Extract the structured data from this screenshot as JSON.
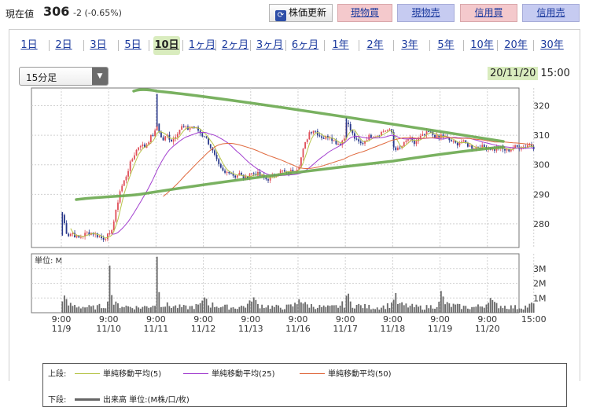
{
  "header": {
    "price_label": "現在値",
    "price": "306",
    "change": "-2 (-0.65%)",
    "update_button": "株価更新",
    "buy_button": "現物買",
    "sell_button": "現物売",
    "margin_buy_button": "信用買",
    "margin_sell_button": "信用売"
  },
  "tabs": [
    "1日",
    "2日",
    "3日",
    "5日",
    "10日",
    "1ヶ月",
    "2ヶ月",
    "3ヶ月",
    "6ヶ月",
    "1年",
    "2年",
    "3年",
    "5年",
    "10年",
    "20年",
    "30年"
  ],
  "active_tab": "10日",
  "interval_select": {
    "value": "15分足"
  },
  "as_of": {
    "date": "20/11/20",
    "time": "15:00"
  },
  "colors": {
    "up_candle": "#e0505a",
    "down_candle": "#2a3a8c",
    "ma5": "#b7c44a",
    "ma25": "#a23fcf",
    "ma50": "#e06a3f",
    "volume": "#6a6a6a",
    "trendline": "#6aa84f",
    "accent_green": "#d9ecbe"
  },
  "legend": {
    "upper_label": "上段:",
    "lower_label": "下段:",
    "ma5": "単純移動平均(5)",
    "ma25": "単純移動平均(25)",
    "ma50": "単純移動平均(50)",
    "volume": "出来高 単位:(M株/口/枚)"
  },
  "volume_unit": "単位: M",
  "chart_data": {
    "type": "candlestick",
    "ylim": [
      272,
      326
    ],
    "yticks": [
      280,
      290,
      300,
      310,
      320
    ],
    "volume_ylim": [
      0,
      4
    ],
    "volume_yticks": [
      "1M",
      "2M",
      "3M"
    ],
    "volume_ytick_values": [
      1,
      2,
      3
    ],
    "x_ticks": [
      {
        "time": "9:00",
        "date": "11/9"
      },
      {
        "time": "9:00",
        "date": "11/10"
      },
      {
        "time": "9:00",
        "date": "11/11"
      },
      {
        "time": "9:00",
        "date": "11/12"
      },
      {
        "time": "9:00",
        "date": "11/13"
      },
      {
        "time": "9:00",
        "date": "11/16"
      },
      {
        "time": "9:00",
        "date": "11/17"
      },
      {
        "time": "9:00",
        "date": "11/18"
      },
      {
        "time": "9:00",
        "date": "11/19"
      },
      {
        "time": "9:00",
        "date": "11/20"
      },
      {
        "time": "15:00",
        "date": ""
      }
    ],
    "daily_path": [
      [
        283,
        276,
        277,
        275,
        276,
        277,
        277,
        276,
        275,
        276
      ],
      [
        276,
        282,
        291,
        295,
        300,
        304,
        307,
        306,
        309,
        311
      ],
      [
        314,
        308,
        310,
        308,
        311,
        313,
        312,
        313,
        312,
        310
      ],
      [
        310,
        307,
        303,
        299,
        297,
        298,
        296,
        297,
        295,
        297
      ],
      [
        297,
        297,
        296,
        295,
        296,
        297,
        298,
        297,
        298,
        299
      ],
      [
        300,
        306,
        311,
        312,
        310,
        309,
        310,
        308,
        307,
        309
      ],
      [
        315,
        311,
        308,
        307,
        309,
        310,
        310,
        311,
        312,
        311
      ],
      [
        306,
        305,
        307,
        309,
        307,
        309,
        310,
        311,
        310,
        309
      ],
      [
        310,
        309,
        308,
        307,
        308,
        307,
        306,
        306,
        306,
        306
      ],
      [
        306,
        305,
        306,
        305,
        305,
        306,
        306,
        306,
        307,
        306
      ]
    ],
    "intraday_volume_pattern": [
      1.2,
      0.55,
      0.5,
      0.45,
      0.4,
      0.38,
      0.35,
      0.4,
      0.45,
      0.6
    ],
    "volume_spikes": [
      {
        "day": 1,
        "bar": 0,
        "volume": 3.2
      },
      {
        "day": 2,
        "bar": 0,
        "volume": 3.8
      },
      {
        "day": 1,
        "bar": 1,
        "volume": 1.2
      },
      {
        "day": 2,
        "bar": 1,
        "volume": 1.4
      }
    ]
  }
}
